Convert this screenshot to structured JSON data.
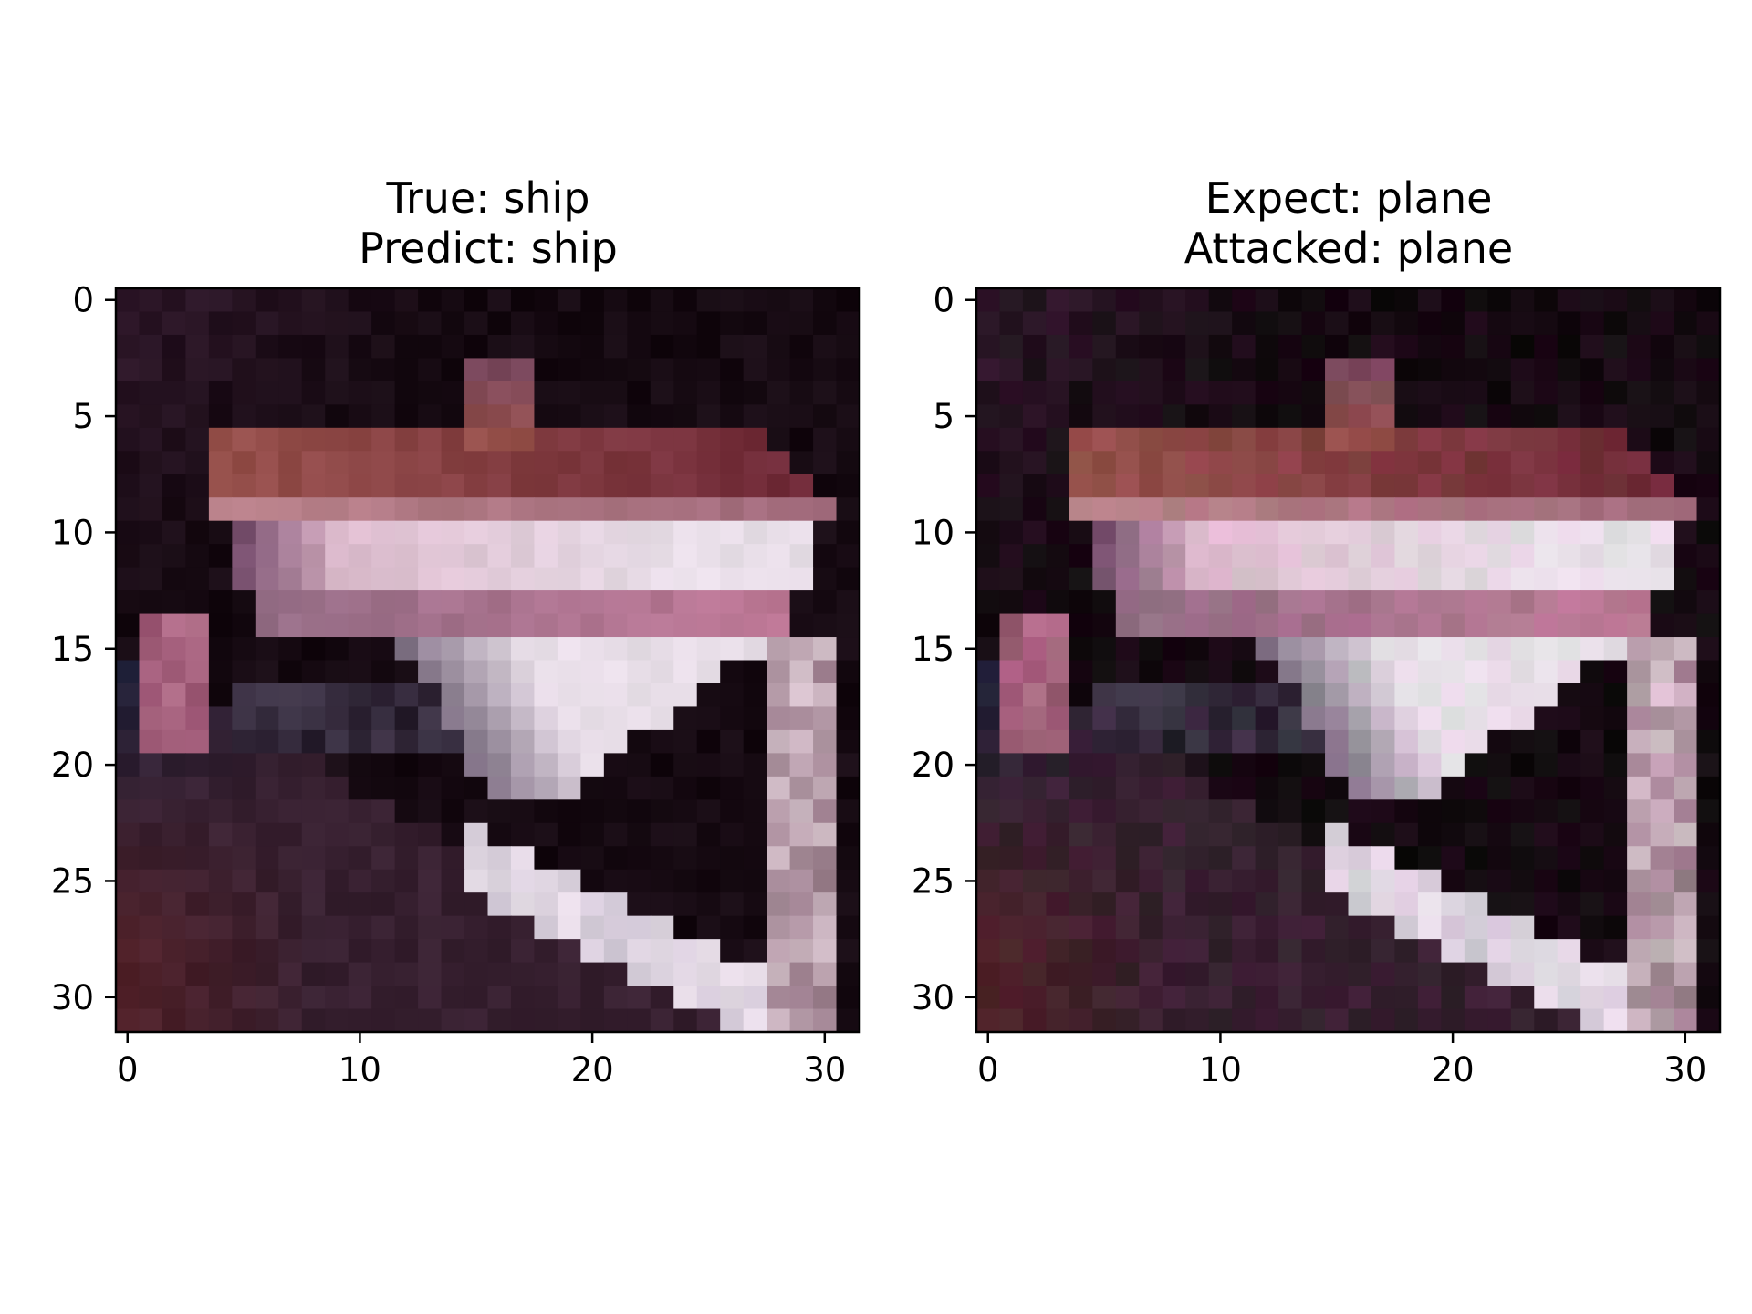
{
  "chart_data": [
    {
      "type": "heatmap",
      "title_lines": [
        "True: ship",
        "Predict: ship"
      ],
      "xlim": [
        -0.5,
        31.5
      ],
      "ylim": [
        31.5,
        -0.5
      ],
      "x_ticks": [
        0,
        10,
        20,
        30
      ],
      "x_tick_labels": [
        "0",
        "10",
        "20",
        "30"
      ],
      "y_ticks": [
        0,
        5,
        10,
        15,
        20,
        25,
        30
      ],
      "y_tick_labels": [
        "0",
        "5",
        "10",
        "15",
        "20",
        "25",
        "30"
      ],
      "grid": false,
      "image_size": [
        32,
        32
      ],
      "pixels_description": "32x32 RGB image of a white ship with red/brown deck on dark background"
    },
    {
      "type": "heatmap",
      "title_lines": [
        "Expect: plane",
        "Attacked: plane"
      ],
      "xlim": [
        -0.5,
        31.5
      ],
      "ylim": [
        31.5,
        -0.5
      ],
      "x_ticks": [
        0,
        10,
        20,
        30
      ],
      "x_tick_labels": [
        "0",
        "10",
        "20",
        "30"
      ],
      "y_ticks": [
        0,
        5,
        10,
        15,
        20,
        25,
        30
      ],
      "y_tick_labels": [
        "0",
        "5",
        "10",
        "15",
        "20",
        "25",
        "30"
      ],
      "grid": false,
      "image_size": [
        32,
        32
      ],
      "pixels_description": "adversarially perturbed copy of the same ship image"
    }
  ],
  "colors": {
    "background": "#ffffff",
    "axes": "#000000",
    "sky": "#140a10",
    "hull_white": "#e8e0ea",
    "deck_red": "#9a4a48",
    "water": "#3a2230"
  }
}
